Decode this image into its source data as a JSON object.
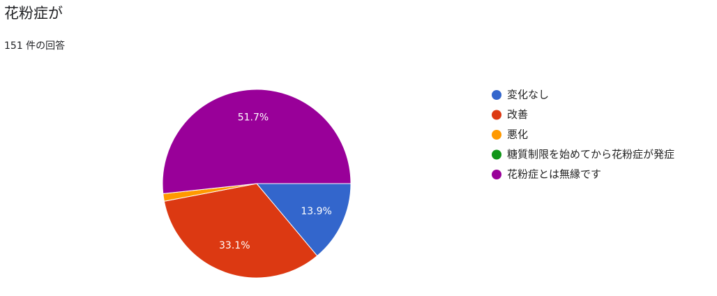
{
  "chart_data": {
    "type": "pie",
    "title": "花粉症が",
    "subtitle": "151 件の回答",
    "categories": [
      "変化なし",
      "改善",
      "悪化",
      "糖質制限を始めてから花粉症が発症",
      "花粉症とは無縁です"
    ],
    "values": [
      13.9,
      33.1,
      1.3,
      0,
      51.7
    ],
    "value_labels": [
      "13.9%",
      "33.1%",
      null,
      null,
      "51.7%"
    ],
    "colors": [
      "#3366cc",
      "#dc3912",
      "#ff9900",
      "#109618",
      "#990099"
    ],
    "legend": "right"
  }
}
